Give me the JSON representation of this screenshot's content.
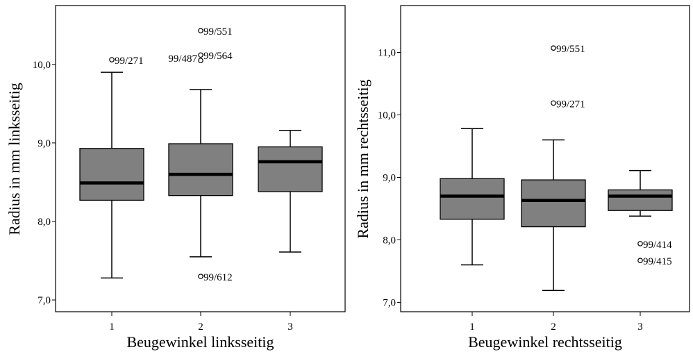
{
  "chart_data": [
    {
      "type": "box",
      "xlabel": "Beugewinkel linksseitig",
      "ylabel": "Radius in mm linksseitig",
      "ylim": [
        6.85,
        10.75
      ],
      "yticks": [
        7.0,
        8.0,
        9.0,
        10.0
      ],
      "ytick_labels": [
        "7,0",
        "8,0",
        "9,0",
        "10,0"
      ],
      "categories": [
        "1",
        "2",
        "3"
      ],
      "boxes": [
        {
          "category": "1",
          "whisker_low": 7.28,
          "q1": 8.27,
          "median": 8.49,
          "q3": 8.93,
          "whisker_high": 9.9
        },
        {
          "category": "2",
          "whisker_low": 7.55,
          "q1": 8.33,
          "median": 8.6,
          "q3": 8.99,
          "whisker_high": 9.68
        },
        {
          "category": "3",
          "whisker_low": 7.61,
          "q1": 8.38,
          "median": 8.76,
          "q3": 8.95,
          "whisker_high": 9.16
        }
      ],
      "outliers": [
        {
          "category": "1",
          "value": 10.06,
          "label": "99/271",
          "label_side": "right"
        },
        {
          "category": "2",
          "value": 10.43,
          "label": "99/551",
          "label_side": "right"
        },
        {
          "category": "2",
          "value": 10.12,
          "label": "99/564",
          "label_side": "right"
        },
        {
          "category": "2",
          "value": 10.05,
          "label": "99/487",
          "label_side": "left"
        },
        {
          "category": "2",
          "value": 7.3,
          "label": "99/612",
          "label_side": "right"
        }
      ],
      "box_color": "#808080"
    },
    {
      "type": "box",
      "xlabel": "Beugewinkel rechtsseitig",
      "ylabel": "Radius in mm rechtsseitig",
      "ylim": [
        6.85,
        11.75
      ],
      "yticks": [
        7.0,
        8.0,
        9.0,
        10.0,
        11.0
      ],
      "ytick_labels": [
        "7,0",
        "8,0",
        "9,0",
        "10,0",
        "11,0"
      ],
      "categories": [
        "1",
        "2",
        "3"
      ],
      "boxes": [
        {
          "category": "1",
          "whisker_low": 7.6,
          "q1": 8.33,
          "median": 8.7,
          "q3": 8.98,
          "whisker_high": 9.78
        },
        {
          "category": "2",
          "whisker_low": 7.19,
          "q1": 8.21,
          "median": 8.63,
          "q3": 8.96,
          "whisker_high": 9.6
        },
        {
          "category": "3",
          "whisker_low": 8.38,
          "q1": 8.47,
          "median": 8.7,
          "q3": 8.8,
          "whisker_high": 9.11
        }
      ],
      "outliers": [
        {
          "category": "2",
          "value": 11.07,
          "label": "99/551",
          "label_side": "right"
        },
        {
          "category": "2",
          "value": 10.19,
          "label": "99/271",
          "label_side": "right"
        },
        {
          "category": "3",
          "value": 7.94,
          "label": "99/414",
          "label_side": "right"
        },
        {
          "category": "3",
          "value": 7.67,
          "label": "99/415",
          "label_side": "right"
        }
      ],
      "box_color": "#808080"
    }
  ]
}
